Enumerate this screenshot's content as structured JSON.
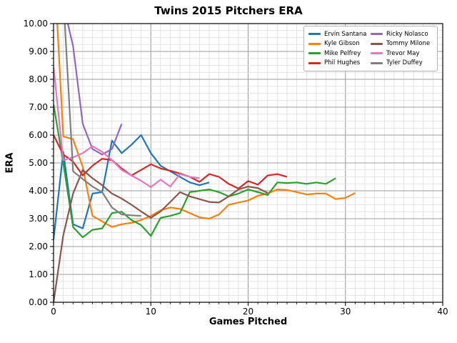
{
  "title": "Twins 2015 Pitchers ERA",
  "xlabel": "Games Pitched",
  "ylabel": "ERA",
  "chart_data": {
    "type": "line",
    "title": "Twins 2015 Pitchers ERA",
    "xlabel": "Games Pitched",
    "ylabel": "ERA",
    "xlim": [
      0,
      40
    ],
    "ylim": [
      0,
      10
    ],
    "x_ticks": [
      0,
      10,
      20,
      30,
      40
    ],
    "y_tick_labels": [
      "0.00",
      "1.00",
      "2.00",
      "3.00",
      "4.00",
      "5.00",
      "6.00",
      "7.00",
      "8.00",
      "9.00",
      "10.00"
    ],
    "grid": {
      "minor_x_step_games": 1,
      "minor_y_step_era": 0.25,
      "major_y_step_era": 1.0,
      "minor_color": "#dcdcdc",
      "major_color": "#9e9e9e",
      "grid_on": true
    },
    "legend": {
      "position": "upper right",
      "columns": 2,
      "border_color": "#b3b3b3"
    },
    "x_is_game_index_from_zero": true,
    "series": [
      {
        "name": "Ervin Santana",
        "color": "#1f77b4",
        "values": [
          2.25,
          5.4,
          2.8,
          2.65,
          3.9,
          3.95,
          5.8,
          5.35,
          5.65,
          6.0,
          5.35,
          4.9,
          4.7,
          4.5,
          4.3,
          4.2,
          4.3
        ]
      },
      {
        "name": "Kyle Gibson",
        "color": "#ff7f0e",
        "values": [
          12.5,
          5.95,
          5.85,
          4.85,
          3.1,
          2.9,
          2.7,
          2.8,
          2.85,
          2.95,
          3.1,
          3.3,
          3.4,
          3.35,
          3.2,
          3.05,
          3.0,
          3.15,
          3.5,
          3.58,
          3.65,
          3.82,
          3.9,
          4.05,
          4.03,
          3.95,
          3.87,
          3.9,
          3.9,
          3.7,
          3.75,
          3.92
        ]
      },
      {
        "name": "Mike Pelfrey",
        "color": "#2ca02c",
        "values": [
          7.1,
          5.0,
          2.7,
          2.33,
          2.6,
          2.65,
          3.2,
          3.25,
          2.95,
          2.77,
          2.38,
          3.03,
          3.1,
          3.2,
          3.95,
          4.0,
          4.05,
          3.95,
          3.8,
          3.9,
          4.05,
          3.95,
          3.85,
          4.3,
          4.28,
          4.3,
          4.25,
          4.3,
          4.25,
          4.45
        ]
      },
      {
        "name": "Phil Hughes",
        "color": "#d62728",
        "values": [
          6.0,
          5.3,
          5.05,
          4.55,
          4.9,
          5.15,
          5.1,
          4.8,
          4.55,
          4.75,
          4.95,
          4.8,
          4.72,
          4.62,
          4.5,
          4.32,
          4.6,
          4.5,
          4.25,
          4.08,
          4.35,
          4.22,
          4.55,
          4.6,
          4.5
        ]
      },
      {
        "name": "Ricky Nolasco",
        "color": "#9467bd",
        "values": [
          13.5,
          10.7,
          9.2,
          6.4,
          5.5,
          5.3,
          5.5,
          6.4
        ]
      },
      {
        "name": "Tommy Milone",
        "color": "#8c564b",
        "values": [
          0.0,
          2.4,
          3.9,
          4.75,
          4.45,
          4.2,
          3.9,
          3.72,
          3.5,
          3.26,
          3.03,
          3.26,
          3.6,
          3.95,
          3.8,
          3.7,
          3.6,
          3.58,
          3.8,
          4.05,
          4.15,
          4.1,
          3.92
        ]
      },
      {
        "name": "Trevor May",
        "color": "#e377c2",
        "values": [
          8.45,
          5.1,
          5.2,
          5.35,
          5.6,
          5.4,
          5.1,
          4.75,
          4.55,
          4.36,
          4.13,
          4.4,
          4.15,
          4.6,
          4.5,
          4.45
        ]
      },
      {
        "name": "Tyler Duffey",
        "color": "#7f7f7f",
        "values": [
          13.0,
          11.0,
          4.7,
          4.42,
          4.15,
          3.95,
          3.4,
          3.15,
          3.12,
          3.1
        ]
      }
    ]
  }
}
